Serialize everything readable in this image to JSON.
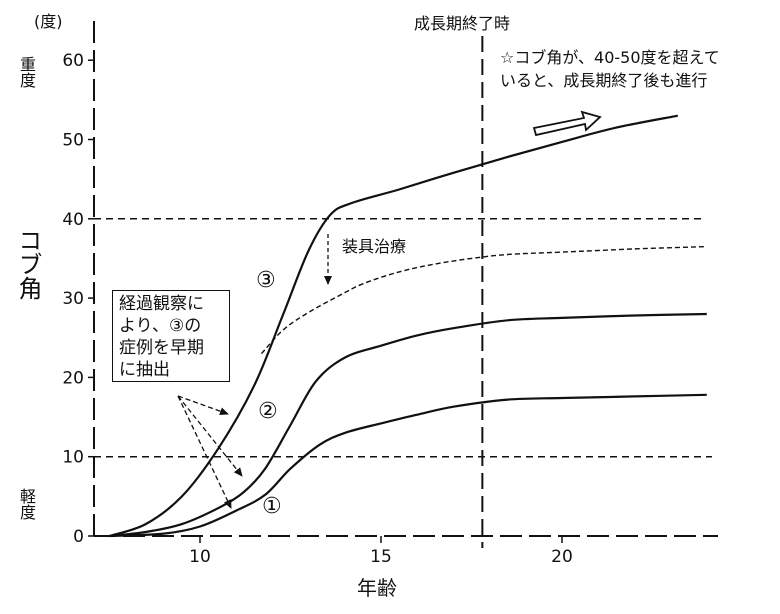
{
  "chart_data": {
    "type": "line",
    "y_unit_label": "(度)",
    "xlabel": "年齢",
    "ylabel": "コブ角",
    "y_top_label": "重度",
    "y_bottom_label": "軽度",
    "xlim": [
      7,
      24.5
    ],
    "ylim": [
      0,
      65
    ],
    "x_ticks": [
      "10",
      "15",
      "20"
    ],
    "y_ticks": [
      "0",
      "10",
      "20",
      "30",
      "40",
      "50",
      "60"
    ],
    "series": [
      {
        "name": "③",
        "style": "solid",
        "x": [
          7.5,
          8.5,
          9.5,
          10.5,
          11.5,
          12.3,
          13.0,
          13.6,
          14.2,
          15.5,
          17.0,
          18.5,
          20.0,
          21.5,
          23.2
        ],
        "y": [
          0,
          1.5,
          5,
          11,
          19,
          28,
          36,
          40.5,
          42,
          43.7,
          45.8,
          47.8,
          49.7,
          51.5,
          53
        ]
      },
      {
        "name": "②",
        "style": "solid",
        "x": [
          7.5,
          8.5,
          9.5,
          10.5,
          11.2,
          11.8,
          12.5,
          13.2,
          14.0,
          15.0,
          16.0,
          17.0,
          18.5,
          20.0,
          22.0,
          24.0
        ],
        "y": [
          0,
          0.5,
          1.5,
          3.5,
          5.5,
          8.5,
          14,
          19.5,
          22.5,
          24,
          25.3,
          26.2,
          27.2,
          27.5,
          27.8,
          28
        ]
      },
      {
        "name": "①",
        "style": "solid",
        "x": [
          7.5,
          9.0,
          10.0,
          11.0,
          11.8,
          12.5,
          13.3,
          14.0,
          15.0,
          16.0,
          17.0,
          18.5,
          20.0,
          22.0,
          24.0
        ],
        "y": [
          0,
          0.3,
          1.2,
          3.2,
          5.2,
          8.5,
          11.5,
          13,
          14.2,
          15.3,
          16.3,
          17.2,
          17.4,
          17.6,
          17.8
        ]
      },
      {
        "name": "装具治療",
        "style": "dashed",
        "x": [
          11.7,
          12.3,
          13.0,
          13.8,
          14.5,
          15.5,
          16.5,
          17.5,
          18.5,
          20.0,
          22.0,
          24.0
        ],
        "y": [
          23,
          26,
          28.2,
          30.2,
          31.8,
          33.3,
          34.3,
          35.0,
          35.5,
          35.8,
          36.2,
          36.5
        ]
      }
    ],
    "reference_lines": [
      {
        "axis": "y",
        "value": 40,
        "style": "dashed"
      },
      {
        "axis": "y",
        "value": 10,
        "style": "dashed"
      },
      {
        "axis": "x",
        "value": 17.8,
        "style": "dashed",
        "label": "成長期終了時"
      }
    ],
    "annotations": {
      "curve_labels": [
        "③",
        "②",
        "①"
      ],
      "treatment": "装具治療",
      "note_line1": "☆コブ角が、40-50度を超えて",
      "note_line2": "いると、成長期終了後も進行",
      "box_line1": "経過観察に",
      "box_line2": "より、③の",
      "box_line3": "症例を早期",
      "box_line4": "に抽出"
    },
    "grid": false,
    "legend": "none"
  }
}
